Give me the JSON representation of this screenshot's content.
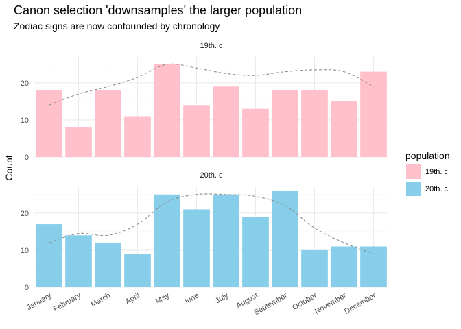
{
  "chart_data": {
    "type": "bar",
    "title": "Canon selection 'downsamples' the larger population",
    "subtitle": "Zodiac signs are now confounded by chronology",
    "xlabel": "",
    "ylabel": "Count",
    "categories": [
      "January",
      "February",
      "March",
      "April",
      "May",
      "June",
      "July",
      "August",
      "September",
      "October",
      "November",
      "December"
    ],
    "ylim": [
      0,
      27
    ],
    "yticks": [
      0,
      10,
      20
    ],
    "grid": true,
    "legend": {
      "title": "population",
      "position": "right"
    },
    "series": [
      {
        "name": "19th. c",
        "color": "#FFC0CB",
        "values": [
          18,
          8,
          18,
          11,
          25,
          14,
          19,
          13,
          18,
          18,
          15,
          23
        ],
        "smooth": [
          14,
          17,
          19,
          21.5,
          25,
          24,
          22.5,
          22,
          23,
          23.5,
          23,
          19
        ]
      },
      {
        "name": "20th. c",
        "color": "#87CEEB",
        "values": [
          17,
          14,
          12,
          9,
          25,
          21,
          25,
          19,
          26,
          10,
          11,
          11
        ],
        "smooth": [
          12,
          14.5,
          14,
          17,
          23,
          25,
          25,
          24.5,
          22,
          16,
          12,
          9
        ]
      }
    ],
    "smooth_color": "#8C8C8C"
  }
}
